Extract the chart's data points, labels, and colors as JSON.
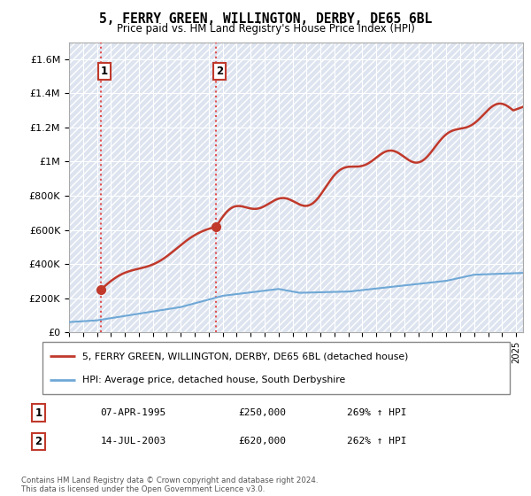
{
  "title": "5, FERRY GREEN, WILLINGTON, DERBY, DE65 6BL",
  "subtitle": "Price paid vs. HM Land Registry's House Price Index (HPI)",
  "ylabel_ticks": [
    "£0",
    "£200K",
    "£400K",
    "£600K",
    "£800K",
    "£1M",
    "£1.2M",
    "£1.4M",
    "£1.6M"
  ],
  "ytick_values": [
    0,
    200000,
    400000,
    600000,
    800000,
    1000000,
    1200000,
    1400000,
    1600000
  ],
  "ylim": [
    0,
    1700000
  ],
  "xlim_start": 1993.0,
  "xlim_end": 2025.5,
  "purchase_points": [
    {
      "date_num": 1995.27,
      "price": 250000,
      "label": "1"
    },
    {
      "date_num": 2003.54,
      "price": 620000,
      "label": "2"
    }
  ],
  "legend_line1": "5, FERRY GREEN, WILLINGTON, DERBY, DE65 6BL (detached house)",
  "legend_line2": "HPI: Average price, detached house, South Derbyshire",
  "table_rows": [
    {
      "num": "1",
      "date": "07-APR-1995",
      "price": "£250,000",
      "hpi": "269% ↑ HPI"
    },
    {
      "num": "2",
      "date": "14-JUL-2003",
      "price": "£620,000",
      "hpi": "262% ↑ HPI"
    }
  ],
  "footer": "Contains HM Land Registry data © Crown copyright and database right 2024.\nThis data is licensed under the Open Government Licence v3.0.",
  "hpi_color": "#6fa8d6",
  "property_color": "#c0392b",
  "dashed_vline_color": "#e05050",
  "bg_color": "#dde4f0"
}
